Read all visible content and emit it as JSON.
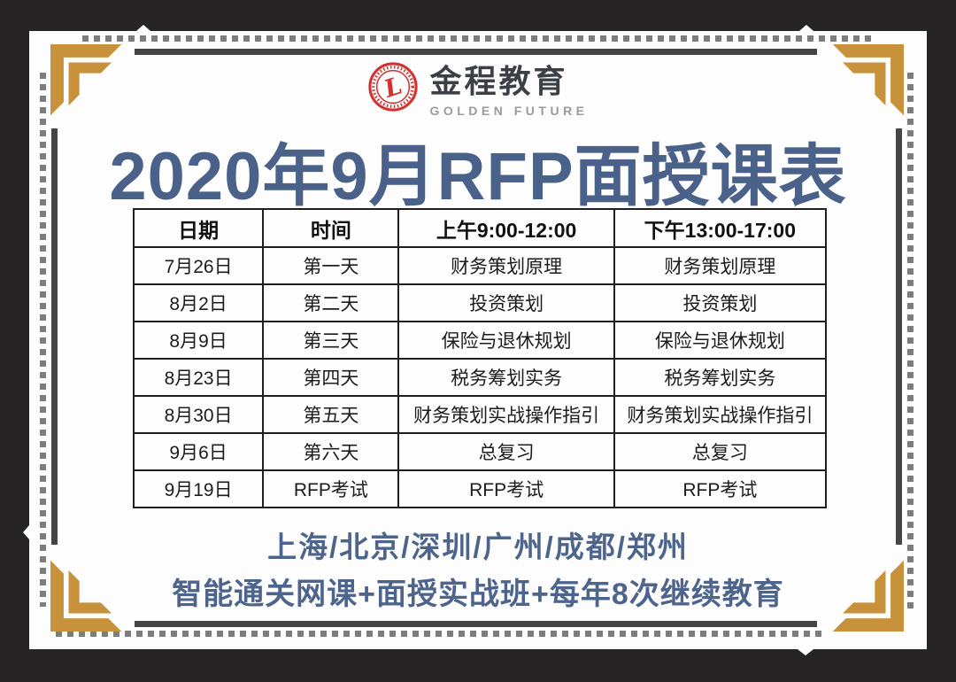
{
  "page": {
    "background": "#272425",
    "card_background": "#fdfdfd"
  },
  "logo": {
    "brand": "金程教育",
    "subtitle": "GOLDEN FUTURE",
    "seal_icon": "red-circular-seal-with-script-letter",
    "seal_color": "#d2312d"
  },
  "title": {
    "text": "2020年9月RFP面授课表",
    "color": "#4a6189"
  },
  "schedule": {
    "headers": [
      "日期",
      "时间",
      "上午9:00-12:00",
      "下午13:00-17:00"
    ],
    "rows": [
      [
        "7月26日",
        "第一天",
        "财务策划原理",
        "财务策划原理"
      ],
      [
        "8月2日",
        "第二天",
        "投资策划",
        "投资策划"
      ],
      [
        "8月9日",
        "第三天",
        "保险与退休规划",
        "保险与退休规划"
      ],
      [
        "8月23日",
        "第四天",
        "税务筹划实务",
        "税务筹划实务"
      ],
      [
        "8月30日",
        "第五天",
        "财务策划实战操作指引",
        "财务策划实战操作指引"
      ],
      [
        "9月6日",
        "第六天",
        "总复习",
        "总复习"
      ],
      [
        "9月19日",
        "RFP考试",
        "RFP考试",
        "RFP考试"
      ]
    ]
  },
  "footer": {
    "cities": "上海/北京/深圳/广州/成都/郑州",
    "services": "智能通关网课+面授实战班+每年8次继续教育",
    "color": "#4d648c"
  },
  "decor": {
    "gold": "#c8923c",
    "solid_line": "#454545",
    "dotted_line": "#7d7d7d"
  }
}
